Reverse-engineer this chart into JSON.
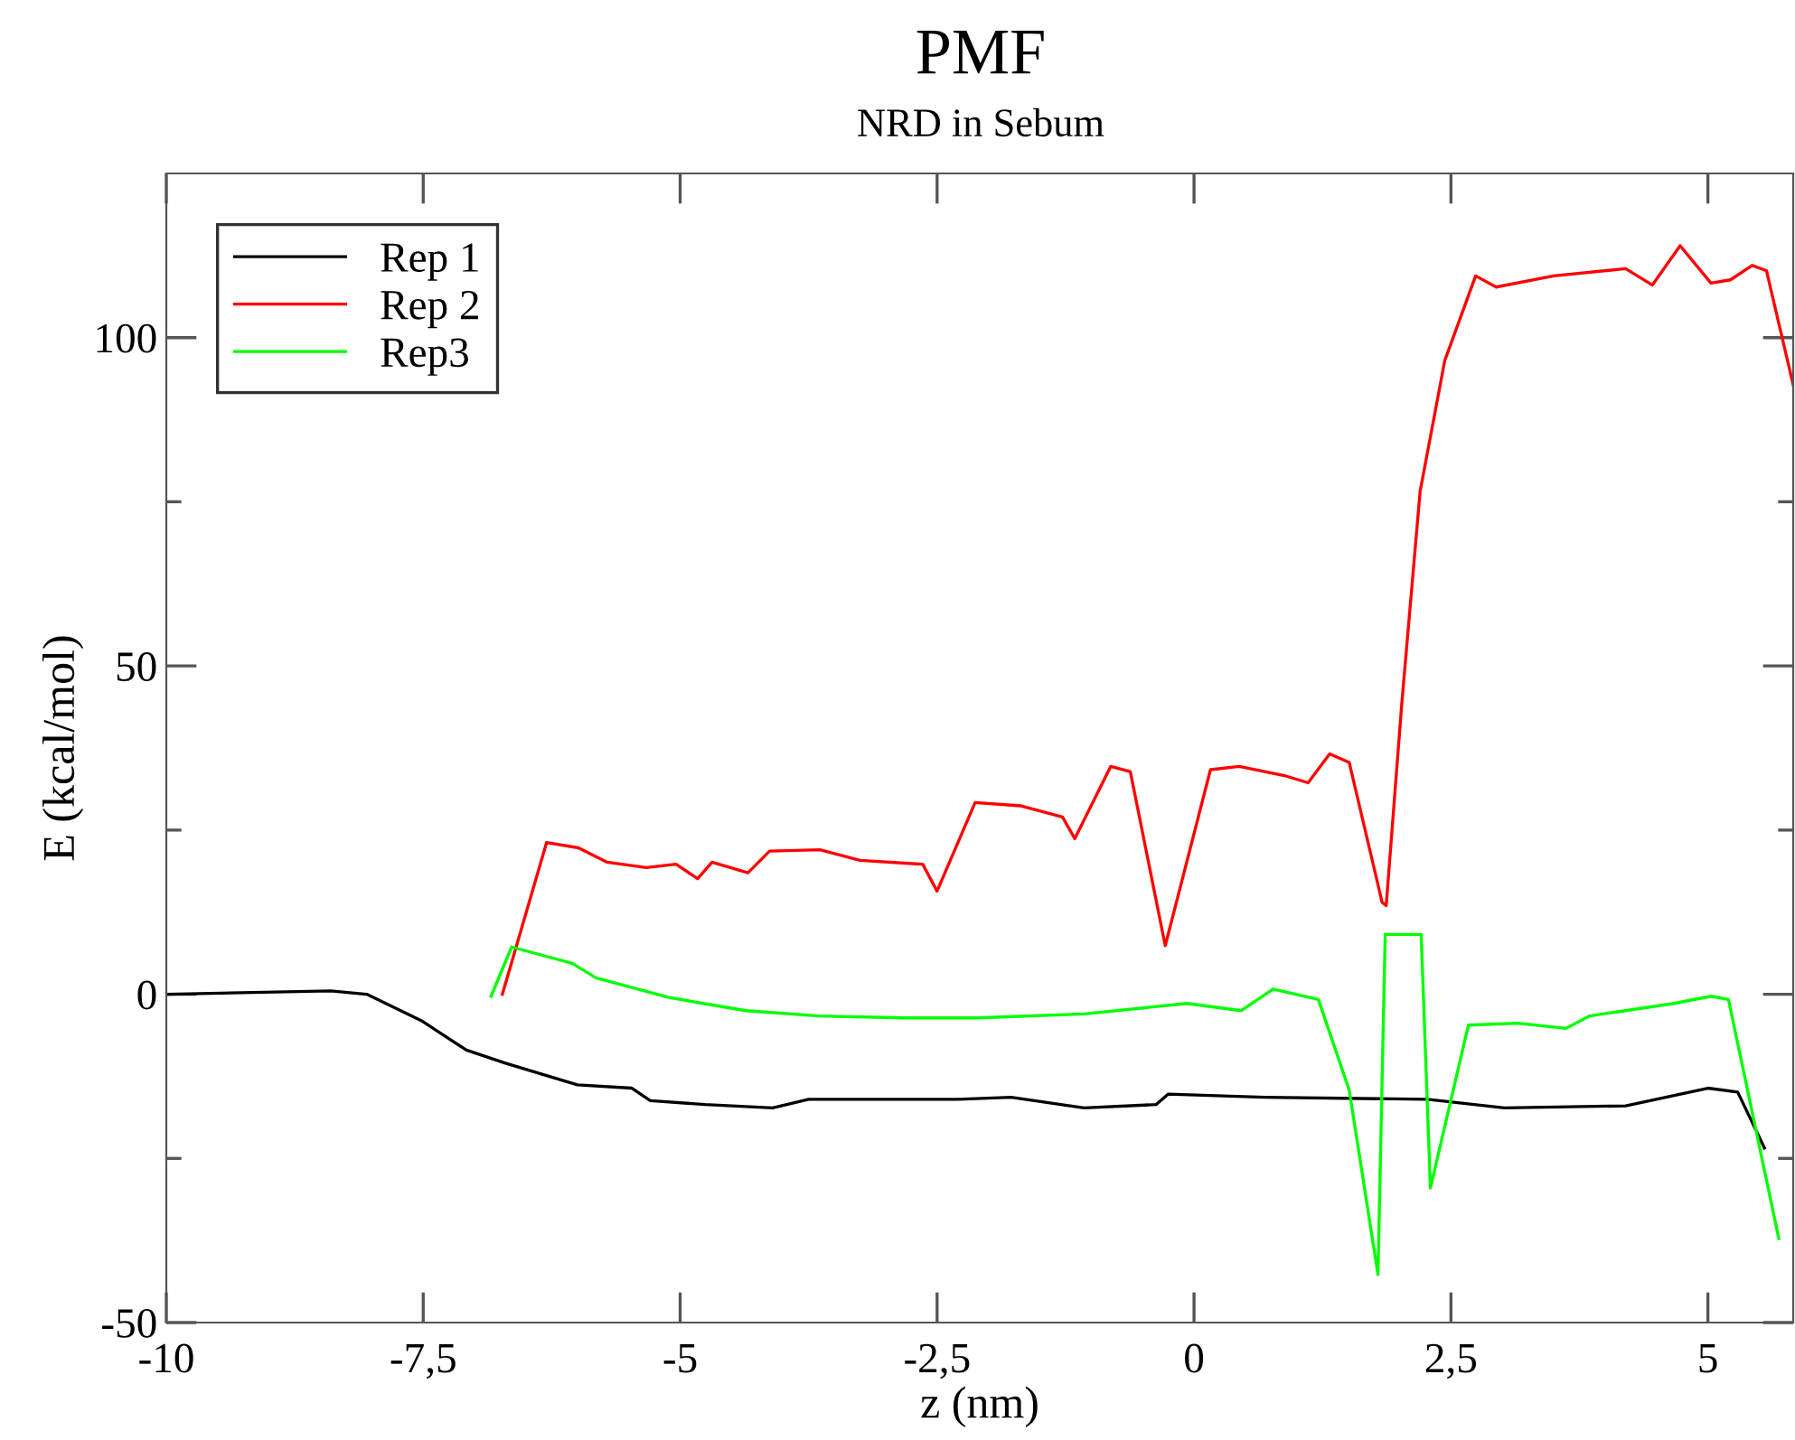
{
  "chart_data": {
    "type": "line",
    "title": "PMF",
    "subtitle": "NRD in Sebum",
    "xlabel": "z (nm)",
    "ylabel": "E (kcal/mol)",
    "xlim": [
      -10,
      5.83
    ],
    "ylim": [
      -50,
      125
    ],
    "xticks": [
      {
        "value": -10,
        "label": "-10"
      },
      {
        "value": -7.5,
        "label": "-7,5"
      },
      {
        "value": -5,
        "label": "-5"
      },
      {
        "value": -2.5,
        "label": "-2,5"
      },
      {
        "value": 0,
        "label": "0"
      },
      {
        "value": 2.5,
        "label": "2,5"
      },
      {
        "value": 5,
        "label": "5"
      }
    ],
    "yticks": [
      {
        "value": -50,
        "label": "-50"
      },
      {
        "value": -25,
        "label": null
      },
      0,
      {
        "value": 25,
        "label": null
      },
      50,
      {
        "value": 75,
        "label": null
      },
      100
    ],
    "grid": false,
    "legend": "top left",
    "marker": "none",
    "line_style": "solid",
    "series": [
      {
        "name": "Rep 1",
        "color": "#000000",
        "x": [
          -10,
          -8.4,
          -8.05,
          -7.52,
          -7.08,
          -6.7,
          -6.0,
          -5.47,
          -5.29,
          -4.76,
          -4.1,
          -3.75,
          -2.83,
          -2.3,
          -1.78,
          -1.07,
          -0.37,
          -0.25,
          0.69,
          2.27,
          3.02,
          4.2,
          5.0,
          5.29,
          5.55
        ],
        "values": [
          0,
          0.5,
          0,
          -4,
          -8.5,
          -10.5,
          -13.8,
          -14.3,
          -16.2,
          -16.8,
          -17.3,
          -16,
          -16,
          -16,
          -15.7,
          -17.3,
          -16.8,
          -15.2,
          -15.7,
          -16,
          -17.3,
          -17,
          -14.3,
          -14.9,
          -23.4
        ]
      },
      {
        "name": "Rep 2",
        "color": "#ff0000",
        "x": [
          -6.73,
          -6.3,
          -5.99,
          -5.71,
          -5.33,
          -5.04,
          -4.83,
          -4.69,
          -4.34,
          -4.13,
          -3.64,
          -3.25,
          -2.64,
          -2.5,
          -2.13,
          -1.69,
          -1.28,
          -1.16,
          -0.81,
          -0.62,
          -0.28,
          0.16,
          0.44,
          0.88,
          1.11,
          1.32,
          1.51,
          1.83,
          1.87,
          2.02,
          2.2,
          2.44,
          2.74,
          2.94,
          3.5,
          4.2,
          4.46,
          4.73,
          5.03,
          5.22,
          5.43,
          5.57,
          5.83
        ],
        "values": [
          0,
          23.1,
          22.3,
          20.1,
          19.3,
          19.8,
          17.6,
          20.1,
          18.5,
          21.8,
          22,
          20.4,
          19.8,
          15.7,
          29.2,
          28.7,
          27,
          23.7,
          34.7,
          33.9,
          7.4,
          34.2,
          34.7,
          33.3,
          32.2,
          36.6,
          35.3,
          14,
          13.5,
          44,
          76.6,
          96.5,
          109.4,
          107.7,
          109.4,
          110.5,
          108,
          114,
          108.3,
          108.8,
          111,
          110.2,
          92.8
        ]
      },
      {
        "name": "Rep3",
        "color": "#00ff00",
        "x": [
          -6.84,
          -6.64,
          -6.05,
          -5.82,
          -5.11,
          -4.36,
          -3.65,
          -2.83,
          -2.11,
          -1.07,
          -0.07,
          0.46,
          0.77,
          1.21,
          1.51,
          1.79,
          1.86,
          2.21,
          2.3,
          2.67,
          3.15,
          3.62,
          3.85,
          4.67,
          5.03,
          5.2,
          5.69
        ],
        "values": [
          -0.3,
          7.2,
          4.7,
          2.5,
          -0.5,
          -2.5,
          -3.3,
          -3.6,
          -3.6,
          -3,
          -1.4,
          -2.5,
          0.8,
          -0.8,
          -14.6,
          -42.7,
          9.1,
          9.1,
          -29.5,
          -4.7,
          -4.4,
          -5.2,
          -3.3,
          -1.4,
          -0.3,
          -0.8,
          -37.2
        ]
      }
    ]
  }
}
